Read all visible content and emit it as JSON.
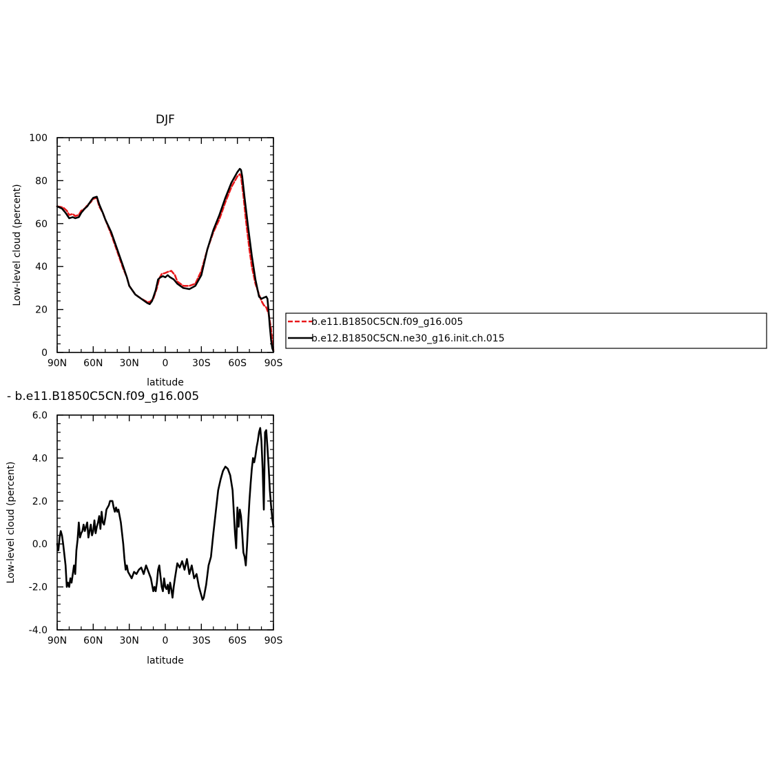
{
  "chart_data": [
    {
      "type": "line",
      "title": "DJF",
      "xlabel": "latitude",
      "ylabel": "Low-level cloud (percent)",
      "xlim": [
        90,
        -90
      ],
      "ylim": [
        0,
        100
      ],
      "x_tick_values": [
        90,
        60,
        30,
        0,
        -30,
        -60,
        -90
      ],
      "x_tick_labels": [
        "90N",
        "60N",
        "30N",
        "0",
        "30S",
        "60S",
        "90S"
      ],
      "y_tick_values": [
        0,
        20,
        40,
        60,
        80,
        100
      ],
      "y_tick_labels": [
        "0",
        "20",
        "40",
        "60",
        "80",
        "100"
      ],
      "series": [
        {
          "name": "b.e11.B1850C5CN.f09_g16.005",
          "color": "#e8181a",
          "style": "dashed",
          "x": [
            90,
            85,
            82,
            80,
            77,
            75,
            72,
            70,
            67,
            65,
            62,
            60,
            57,
            55,
            52,
            50,
            45,
            40,
            35,
            32,
            30,
            25,
            20,
            15,
            13,
            10,
            7,
            5,
            3,
            0,
            -2,
            -5,
            -8,
            -10,
            -15,
            -20,
            -25,
            -30,
            -35,
            -40,
            -45,
            -50,
            -55,
            -60,
            -62,
            -63,
            -65,
            -67,
            -70,
            -72,
            -75,
            -78,
            -80,
            -82,
            -84,
            -86,
            -88,
            -89,
            -90
          ],
          "y": [
            68,
            67.5,
            66,
            64,
            64.5,
            63.5,
            64,
            66,
            67,
            68.5,
            70,
            71.5,
            72,
            68,
            65,
            62,
            55,
            47,
            39,
            35,
            31,
            27,
            25,
            23.5,
            23.5,
            25,
            30,
            34.5,
            36.5,
            37,
            37.5,
            38,
            36,
            33,
            31,
            31,
            32,
            38,
            48,
            56,
            62,
            70,
            77,
            82,
            83,
            82,
            73,
            62,
            48,
            40,
            32,
            27,
            24,
            22,
            21,
            18,
            11,
            5,
            1
          ]
        },
        {
          "name": "b.e12.B1850C5CN.ne30_g16.init.ch.015",
          "color": "#000000",
          "style": "solid",
          "x": [
            90,
            86,
            83,
            80,
            77,
            75,
            72,
            70,
            67,
            65,
            62,
            60,
            57,
            55,
            52,
            50,
            45,
            40,
            35,
            32,
            30,
            25,
            20,
            15,
            13,
            11,
            8,
            6,
            4,
            2,
            0,
            -2,
            -4,
            -7,
            -10,
            -15,
            -20,
            -25,
            -30,
            -35,
            -40,
            -45,
            -50,
            -55,
            -60,
            -62,
            -63,
            -64,
            -66,
            -69,
            -72,
            -75,
            -78,
            -80,
            -84,
            -85,
            -86,
            -87,
            -88,
            -89,
            -90
          ],
          "y": [
            68,
            67,
            65,
            62.5,
            63,
            62.5,
            63,
            65,
            67,
            68,
            70.5,
            72,
            72.5,
            69,
            65,
            62,
            56,
            48,
            40,
            35,
            31,
            27,
            25,
            23,
            22.5,
            24,
            29,
            34,
            35,
            35.5,
            35,
            36,
            35,
            34,
            32,
            30,
            29.5,
            31,
            36,
            48,
            57,
            64,
            72,
            79,
            84,
            85.5,
            85,
            82,
            72,
            58,
            45,
            34,
            26,
            25,
            26,
            25,
            19,
            12,
            6,
            2,
            0.5
          ]
        }
      ]
    },
    {
      "type": "line",
      "title": "- b.e11.B1850C5CN.f09_g16.005",
      "xlabel": "latitude",
      "ylabel": "Low-level cloud (percent)",
      "xlim": [
        90,
        -90
      ],
      "ylim": [
        -4,
        6
      ],
      "x_tick_values": [
        90,
        60,
        30,
        0,
        -30,
        -60,
        -90
      ],
      "x_tick_labels": [
        "90N",
        "60N",
        "30N",
        "0",
        "30S",
        "60S",
        "90S"
      ],
      "y_tick_values": [
        -4,
        -2,
        0,
        2,
        4,
        6
      ],
      "y_tick_labels": [
        "-4.0",
        "-2.0",
        "0.0",
        "2.0",
        "4.0",
        "6.0"
      ],
      "series": [
        {
          "color": "#000000",
          "style": "solid",
          "x": [
            90,
            89,
            88,
            87,
            86,
            85,
            84,
            83,
            82,
            81,
            80,
            79,
            78,
            77,
            76,
            75,
            74,
            73,
            72,
            71,
            70,
            69,
            68,
            67,
            66,
            65,
            64,
            63,
            62,
            61,
            60,
            59,
            58,
            57,
            56,
            55,
            54,
            53,
            52,
            51,
            50,
            49,
            48,
            47,
            46,
            45,
            44,
            43,
            42,
            41,
            40,
            39,
            38,
            37,
            36,
            35,
            34,
            33,
            32,
            31,
            30,
            28,
            26,
            24,
            22,
            20,
            18,
            16,
            14,
            12,
            11,
            10,
            9,
            8,
            7,
            6,
            5,
            4,
            3,
            2,
            1,
            0,
            -1,
            -2,
            -3,
            -4,
            -5,
            -6,
            -7,
            -8,
            -10,
            -12,
            -14,
            -16,
            -18,
            -20,
            -22,
            -24,
            -26,
            -28,
            -30,
            -31,
            -32,
            -34,
            -36,
            -38,
            -40,
            -42,
            -44,
            -46,
            -48,
            -50,
            -52,
            -54,
            -56,
            -57,
            -58,
            -59,
            -60,
            -61,
            -62,
            -63,
            -64,
            -65,
            -66,
            -67,
            -68,
            -69,
            -70,
            -71,
            -72,
            -73,
            -74,
            -75,
            -76,
            -77,
            -78,
            -79,
            -80,
            -81,
            -82,
            -83,
            -84,
            -85,
            -86,
            -87,
            -88,
            -89,
            -90
          ],
          "y": [
            0,
            -0.3,
            0.3,
            0.6,
            0.4,
            0,
            -0.5,
            -1.0,
            -2.0,
            -1.8,
            -2.0,
            -1.6,
            -1.8,
            -1.4,
            -1.0,
            -1.4,
            -0.3,
            0.2,
            1.0,
            0.3,
            0.5,
            0.6,
            0.9,
            0.6,
            0.8,
            1.0,
            0.3,
            0.6,
            0.9,
            0.4,
            0.6,
            1.1,
            0.5,
            0.8,
            1.0,
            1.3,
            0.7,
            1.5,
            1.0,
            0.9,
            1.2,
            1.6,
            1.7,
            1.8,
            2.0,
            2.0,
            2.0,
            1.7,
            1.5,
            1.7,
            1.5,
            1.6,
            1.3,
            1.0,
            0.5,
            0,
            -0.7,
            -1.2,
            -1.0,
            -1.3,
            -1.4,
            -1.6,
            -1.3,
            -1.4,
            -1.2,
            -1.1,
            -1.4,
            -1.0,
            -1.3,
            -1.6,
            -1.9,
            -2.2,
            -2.0,
            -2.2,
            -1.8,
            -1.2,
            -1.0,
            -1.5,
            -2.0,
            -2.2,
            -1.6,
            -2.0,
            -2.1,
            -1.9,
            -2.3,
            -1.8,
            -2.1,
            -2.5,
            -2.0,
            -1.6,
            -0.9,
            -1.1,
            -0.8,
            -1.2,
            -0.7,
            -1.4,
            -1.0,
            -1.6,
            -1.4,
            -2.0,
            -2.4,
            -2.6,
            -2.5,
            -1.9,
            -1.0,
            -0.6,
            0.5,
            1.5,
            2.5,
            3.0,
            3.4,
            3.6,
            3.5,
            3.2,
            2.5,
            1.5,
            0.5,
            -0.2,
            1.7,
            0.8,
            1.6,
            1.3,
            0.5,
            -0.4,
            -0.6,
            -1.0,
            -0.1,
            1.0,
            2.0,
            2.8,
            3.5,
            4.0,
            3.8,
            4.1,
            4.5,
            4.8,
            5.2,
            5.4,
            4.8,
            3.5,
            1.6,
            5.2,
            5.3,
            4.5,
            3.6,
            2.5,
            1.8,
            1.2,
            0.8
          ]
        }
      ]
    }
  ],
  "legend": {
    "entries": [
      {
        "label": "b.e11.B1850C5CN.f09_g16.005",
        "color": "#e8181a",
        "style": "dashed"
      },
      {
        "label": "b.e12.B1850C5CN.ne30_g16.init.ch.015",
        "color": "#000000",
        "style": "solid"
      }
    ]
  }
}
